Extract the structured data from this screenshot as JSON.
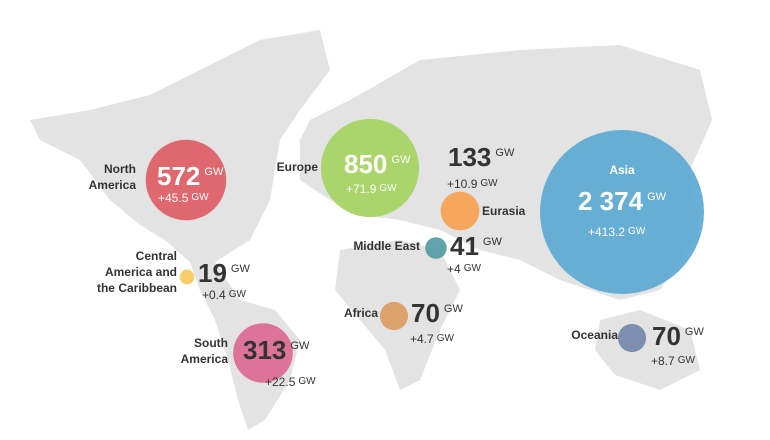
{
  "unit": "GW",
  "regions": [
    {
      "name": [
        "North",
        "America"
      ],
      "capacity": 572,
      "change": "+45.5",
      "color": "#dd5a5f"
    },
    {
      "name": [
        "Europe"
      ],
      "capacity": 850,
      "change": "+71.9",
      "color": "#a3d35c"
    },
    {
      "name": [
        "Asia"
      ],
      "capacity": 2374,
      "capacity_label": "2 374",
      "change": "+413.2",
      "color": "#59a7d3"
    },
    {
      "name": [
        "Eurasia"
      ],
      "capacity": 133,
      "change": "+10.9",
      "color": "#f6a04c"
    },
    {
      "name": [
        "Middle East"
      ],
      "capacity": 41,
      "change": "+4",
      "color": "#4f9aa0"
    },
    {
      "name": [
        "Central",
        "America and",
        "the Caribbean"
      ],
      "capacity": 19,
      "change": "+0.4",
      "color": "#f6c659"
    },
    {
      "name": [
        "Africa"
      ],
      "capacity": 70,
      "change": "+4.7",
      "color": "#d99a5b"
    },
    {
      "name": [
        "South",
        "America"
      ],
      "capacity": 313,
      "change": "+22.5",
      "color": "#db668f"
    },
    {
      "name": [
        "Oceania"
      ],
      "capacity": 70,
      "change": "+8.7",
      "color": "#7284a8"
    }
  ]
}
